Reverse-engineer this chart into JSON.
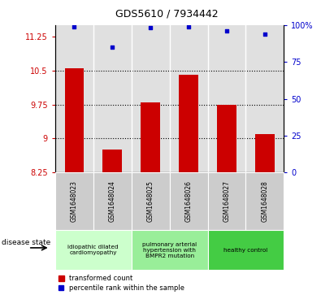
{
  "title": "GDS5610 / 7934442",
  "samples": [
    "GSM1648023",
    "GSM1648024",
    "GSM1648025",
    "GSM1648026",
    "GSM1648027",
    "GSM1648028"
  ],
  "bar_values": [
    10.55,
    8.75,
    9.8,
    10.4,
    9.75,
    9.1
  ],
  "dot_values": [
    99,
    85,
    98,
    99,
    96,
    94
  ],
  "ylim_left": [
    8.25,
    11.5
  ],
  "ylim_right": [
    0,
    100
  ],
  "yticks_left": [
    8.25,
    9.0,
    9.75,
    10.5,
    11.25
  ],
  "yticks_right": [
    0,
    25,
    50,
    75,
    100
  ],
  "ytick_labels_left": [
    "8.25",
    "9",
    "9.75",
    "10.5",
    "11.25"
  ],
  "ytick_labels_right": [
    "0",
    "25",
    "50",
    "75",
    "100%"
  ],
  "hlines": [
    10.5,
    9.75,
    9.0
  ],
  "bar_color": "#cc0000",
  "dot_color": "#0000cc",
  "bar_width": 0.5,
  "disease_groups": [
    {
      "label": "idiopathic dilated\ncardiomyopathy",
      "indices": [
        0,
        1
      ],
      "color": "#ccffcc"
    },
    {
      "label": "pulmonary arterial\nhypertension with\nBMPR2 mutation",
      "indices": [
        2,
        3
      ],
      "color": "#99ee99"
    },
    {
      "label": "healthy control",
      "indices": [
        4,
        5
      ],
      "color": "#44cc44"
    }
  ],
  "disease_state_label": "disease state",
  "legend_bar_label": "transformed count",
  "legend_dot_label": "percentile rank within the sample",
  "background_color": "#ffffff",
  "plot_bg_color": "#e0e0e0",
  "grid_color": "#000000",
  "sample_box_color": "#cccccc"
}
